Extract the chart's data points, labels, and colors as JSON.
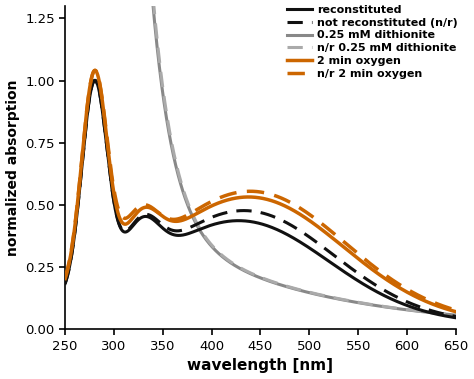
{
  "title": "",
  "xlabel": "wavelength [nm]",
  "ylabel": "normalized absorption",
  "xlim": [
    250,
    650
  ],
  "ylim": [
    0.0,
    1.3
  ],
  "yticks": [
    0.0,
    0.25,
    0.5,
    0.75,
    1.0,
    1.25
  ],
  "xticks": [
    250,
    300,
    350,
    400,
    450,
    500,
    550,
    600,
    650
  ],
  "colors": {
    "reconstituted": "#111111",
    "not_reconstituted": "#111111",
    "dithionite_solid": "#888888",
    "dithionite_dashed": "#aaaaaa",
    "oxygen_solid": "#cc6600",
    "oxygen_dashed": "#cc6600"
  },
  "legend": [
    {
      "label": "reconstituted",
      "color": "#111111",
      "linestyle": "solid"
    },
    {
      "label": "not reconstituted (n/r)",
      "color": "#111111",
      "linestyle": "dashed"
    },
    {
      "label": "0.25 mM dithionite",
      "color": "#888888",
      "linestyle": "solid"
    },
    {
      "label": "n/r 0.25 mM dithionite",
      "color": "#aaaaaa",
      "linestyle": "dashed"
    },
    {
      "label": "2 min oxygen",
      "color": "#cc6600",
      "linestyle": "solid"
    },
    {
      "label": "n/r 2 min oxygen",
      "color": "#cc6600",
      "linestyle": "dashed"
    }
  ],
  "background": "#ffffff",
  "linewidth": 2.2
}
